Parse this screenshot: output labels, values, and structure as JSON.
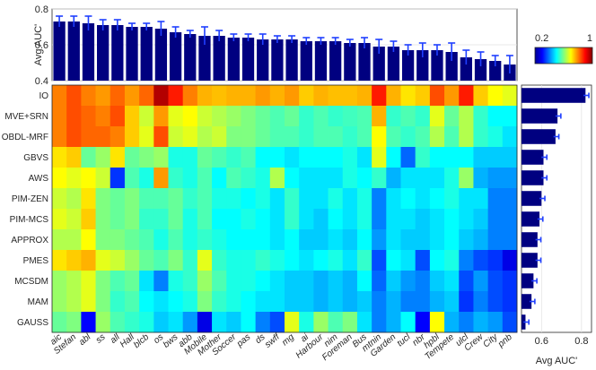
{
  "chart_data": {
    "type": "heatmap",
    "methods": [
      "IO",
      "MVE+SRN",
      "OBDL-MRF",
      "GBVS",
      "AWS",
      "PIM-ZEN",
      "PIM-MCS",
      "APPROX",
      "PMES",
      "MCSDM",
      "MAM",
      "GAUSS"
    ],
    "videos": [
      "aic",
      "Stefan",
      "abl",
      "ss",
      "all",
      "Hall",
      "blcb",
      "os",
      "bws",
      "abb",
      "Mobile",
      "Mother",
      "Soccer",
      "pas",
      "ds",
      "swff",
      "mg",
      "ai",
      "Harbour",
      "nim",
      "Foreman",
      "Bus",
      "mtnin",
      "Garden",
      "tucl",
      "nbr",
      "hpbl",
      "Tempete",
      "ulcl",
      "Crew",
      "City",
      "pnb"
    ],
    "top_bar": {
      "ylabel": "Avg AUC'",
      "ylim": [
        0.4,
        0.8
      ],
      "yticks": [
        "0.4",
        "0.6",
        "0.8"
      ],
      "values": [
        0.73,
        0.73,
        0.72,
        0.71,
        0.71,
        0.7,
        0.7,
        0.69,
        0.67,
        0.66,
        0.65,
        0.65,
        0.64,
        0.64,
        0.63,
        0.63,
        0.63,
        0.62,
        0.62,
        0.62,
        0.61,
        0.61,
        0.59,
        0.59,
        0.57,
        0.57,
        0.57,
        0.56,
        0.53,
        0.52,
        0.51,
        0.49
      ],
      "errors": [
        0.03,
        0.03,
        0.04,
        0.03,
        0.03,
        0.02,
        0.02,
        0.04,
        0.03,
        0.02,
        0.05,
        0.03,
        0.02,
        0.02,
        0.03,
        0.02,
        0.02,
        0.02,
        0.02,
        0.02,
        0.02,
        0.03,
        0.04,
        0.03,
        0.03,
        0.04,
        0.03,
        0.05,
        0.04,
        0.04,
        0.03,
        0.05
      ]
    },
    "side_bar": {
      "xlabel": "Avg AUC'",
      "xlim": [
        0.5,
        0.85
      ],
      "xticks": [
        "0.6",
        "0.8"
      ],
      "values": [
        0.82,
        0.68,
        0.67,
        0.61,
        0.61,
        0.6,
        0.59,
        0.58,
        0.58,
        0.56,
        0.55,
        0.52
      ],
      "errors": [
        0.01,
        0.01,
        0.01,
        0.01,
        0.01,
        0.01,
        0.01,
        0.01,
        0.01,
        0.01,
        0.01,
        0.01
      ]
    },
    "colorbar": {
      "min": 0.2,
      "max": 1,
      "min_label": "0.2",
      "max_label": "1"
    },
    "matrix": [
      [
        0.8,
        0.84,
        0.8,
        0.78,
        0.82,
        0.78,
        0.82,
        0.96,
        0.88,
        0.8,
        0.76,
        0.75,
        0.76,
        0.76,
        0.78,
        0.76,
        0.78,
        0.74,
        0.76,
        0.75,
        0.75,
        0.76,
        0.88,
        0.76,
        0.72,
        0.74,
        0.84,
        0.78,
        0.88,
        0.74,
        0.7,
        0.68
      ],
      [
        0.8,
        0.84,
        0.82,
        0.8,
        0.84,
        0.74,
        0.66,
        0.78,
        0.68,
        0.7,
        0.66,
        0.64,
        0.62,
        0.6,
        0.58,
        0.56,
        0.58,
        0.54,
        0.56,
        0.54,
        0.55,
        0.56,
        0.76,
        0.54,
        0.56,
        0.54,
        0.68,
        0.58,
        0.64,
        0.54,
        0.5,
        0.5
      ],
      [
        0.8,
        0.84,
        0.82,
        0.82,
        0.8,
        0.74,
        0.68,
        0.84,
        0.66,
        0.68,
        0.64,
        0.66,
        0.6,
        0.6,
        0.58,
        0.56,
        0.56,
        0.54,
        0.56,
        0.56,
        0.54,
        0.56,
        0.7,
        0.56,
        0.54,
        0.56,
        0.64,
        0.56,
        0.64,
        0.54,
        0.52,
        0.48
      ],
      [
        0.72,
        0.74,
        0.58,
        0.62,
        0.72,
        0.58,
        0.6,
        0.62,
        0.52,
        0.52,
        0.58,
        0.56,
        0.54,
        0.56,
        0.5,
        0.5,
        0.48,
        0.5,
        0.5,
        0.5,
        0.52,
        0.48,
        0.68,
        0.5,
        0.38,
        0.54,
        0.5,
        0.5,
        0.5,
        0.46,
        0.46,
        0.46
      ],
      [
        0.7,
        0.68,
        0.7,
        0.66,
        0.34,
        0.56,
        0.52,
        0.78,
        0.54,
        0.52,
        0.56,
        0.5,
        0.56,
        0.54,
        0.52,
        0.64,
        0.5,
        0.48,
        0.48,
        0.48,
        0.52,
        0.5,
        0.54,
        0.44,
        0.48,
        0.48,
        0.48,
        0.52,
        0.62,
        0.44,
        0.42,
        0.42
      ],
      [
        0.66,
        0.64,
        0.72,
        0.6,
        0.58,
        0.6,
        0.56,
        0.56,
        0.58,
        0.54,
        0.56,
        0.52,
        0.52,
        0.5,
        0.52,
        0.48,
        0.54,
        0.48,
        0.48,
        0.52,
        0.48,
        0.52,
        0.4,
        0.48,
        0.5,
        0.48,
        0.5,
        0.52,
        0.48,
        0.48,
        0.4,
        0.4
      ],
      [
        0.68,
        0.66,
        0.74,
        0.6,
        0.58,
        0.6,
        0.54,
        0.54,
        0.58,
        0.52,
        0.56,
        0.5,
        0.5,
        0.52,
        0.5,
        0.48,
        0.54,
        0.48,
        0.46,
        0.5,
        0.48,
        0.52,
        0.4,
        0.48,
        0.48,
        0.46,
        0.48,
        0.5,
        0.48,
        0.46,
        0.4,
        0.4
      ],
      [
        0.64,
        0.64,
        0.7,
        0.6,
        0.6,
        0.58,
        0.56,
        0.52,
        0.56,
        0.52,
        0.54,
        0.52,
        0.5,
        0.5,
        0.5,
        0.48,
        0.5,
        0.46,
        0.46,
        0.48,
        0.46,
        0.5,
        0.42,
        0.48,
        0.46,
        0.46,
        0.48,
        0.5,
        0.46,
        0.44,
        0.4,
        0.4
      ],
      [
        0.72,
        0.74,
        0.76,
        0.68,
        0.66,
        0.62,
        0.58,
        0.56,
        0.6,
        0.54,
        0.68,
        0.54,
        0.52,
        0.52,
        0.54,
        0.52,
        0.5,
        0.48,
        0.5,
        0.52,
        0.48,
        0.54,
        0.36,
        0.5,
        0.48,
        0.36,
        0.5,
        0.52,
        0.4,
        0.36,
        0.34,
        0.28
      ],
      [
        0.62,
        0.64,
        0.68,
        0.6,
        0.56,
        0.58,
        0.48,
        0.4,
        0.52,
        0.54,
        0.62,
        0.56,
        0.52,
        0.52,
        0.5,
        0.48,
        0.46,
        0.46,
        0.44,
        0.46,
        0.44,
        0.5,
        0.38,
        0.46,
        0.42,
        0.4,
        0.46,
        0.48,
        0.36,
        0.42,
        0.36,
        0.34
      ],
      [
        0.62,
        0.64,
        0.68,
        0.6,
        0.54,
        0.56,
        0.5,
        0.48,
        0.5,
        0.52,
        0.6,
        0.54,
        0.52,
        0.5,
        0.48,
        0.48,
        0.46,
        0.46,
        0.44,
        0.46,
        0.44,
        0.46,
        0.4,
        0.44,
        0.4,
        0.4,
        0.44,
        0.46,
        0.34,
        0.4,
        0.36,
        0.34
      ],
      [
        0.58,
        0.6,
        0.3,
        0.62,
        0.56,
        0.54,
        0.52,
        0.46,
        0.48,
        0.42,
        0.28,
        0.48,
        0.46,
        0.5,
        0.4,
        0.36,
        0.68,
        0.52,
        0.62,
        0.56,
        0.6,
        0.48,
        0.4,
        0.44,
        0.5,
        0.3,
        0.7,
        0.44,
        0.4,
        0.44,
        0.42,
        0.36
      ]
    ]
  }
}
